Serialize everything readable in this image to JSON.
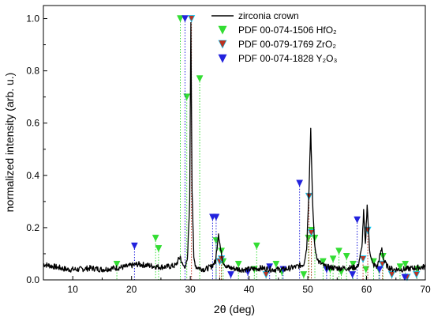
{
  "chart_data": {
    "type": "line",
    "xlabel": "2θ (deg)",
    "ylabel": "normalized intensity (arb. u.)",
    "xlim": [
      5,
      70
    ],
    "ylim": [
      0,
      1.05
    ],
    "x_ticks": [
      10,
      20,
      30,
      40,
      50,
      60,
      70
    ],
    "y_ticks": [
      0.0,
      0.2,
      0.4,
      0.6,
      0.8,
      1.0
    ],
    "y_tick_labels": [
      "0.0",
      "0.2",
      "0.4",
      "0.6",
      "0.8",
      "1.0"
    ],
    "grid": false,
    "legend_position": "top-right",
    "series": [
      {
        "name": "zirconia crown",
        "kind": "line",
        "color": "#000000",
        "x": [
          5,
          7,
          9,
          11,
          13,
          15,
          17,
          19,
          21,
          23,
          24.5,
          26,
          27.5,
          28.3,
          28.6,
          29.0,
          29.5,
          29.9,
          30.1,
          30.3,
          30.6,
          31.0,
          31.6,
          32.5,
          33.5,
          34.3,
          34.8,
          35.2,
          35.6,
          36.2,
          37,
          38.5,
          40,
          42,
          44,
          46,
          48,
          49.3,
          49.8,
          50.2,
          50.5,
          50.8,
          51.2,
          51.8,
          53,
          55,
          57,
          58.5,
          59.2,
          59.5,
          59.8,
          60.1,
          60.5,
          61.0,
          61.8,
          62.6,
          63,
          63.6,
          64.5,
          66,
          68,
          70
        ],
        "y": [
          0.06,
          0.05,
          0.04,
          0.04,
          0.045,
          0.04,
          0.045,
          0.05,
          0.06,
          0.055,
          0.05,
          0.05,
          0.055,
          0.09,
          0.06,
          0.05,
          0.07,
          0.3,
          0.99,
          0.35,
          0.08,
          0.05,
          0.045,
          0.04,
          0.05,
          0.07,
          0.18,
          0.11,
          0.07,
          0.05,
          0.045,
          0.04,
          0.04,
          0.045,
          0.04,
          0.04,
          0.05,
          0.06,
          0.12,
          0.35,
          0.58,
          0.3,
          0.12,
          0.07,
          0.05,
          0.045,
          0.045,
          0.05,
          0.12,
          0.26,
          0.13,
          0.29,
          0.12,
          0.06,
          0.05,
          0.12,
          0.07,
          0.05,
          0.04,
          0.04,
          0.045,
          0.05
        ]
      },
      {
        "name": "PDF 00-074-1506 HfO₂",
        "kind": "markers",
        "color": "#33dd33",
        "marker": "triangle-down",
        "x": [
          17.5,
          24.1,
          24.6,
          28.3,
          29.4,
          31.6,
          34.4,
          35.3,
          35.6,
          38.2,
          40.9,
          41.3,
          44.6,
          45.6,
          49.3,
          50.1,
          50.6,
          51.2,
          52.6,
          53.8,
          54.3,
          55.3,
          55.7,
          56.6,
          57.7,
          59.9,
          61.2,
          62.1,
          62.8,
          64.3,
          65.7,
          66.6,
          68.6
        ],
        "y": [
          0.06,
          0.16,
          0.12,
          1.0,
          0.7,
          0.77,
          0.15,
          0.11,
          0.07,
          0.06,
          0.04,
          0.13,
          0.06,
          0.03,
          0.02,
          0.16,
          0.19,
          0.16,
          0.07,
          0.04,
          0.08,
          0.11,
          0.03,
          0.09,
          0.06,
          0.04,
          0.07,
          0.04,
          0.09,
          0.02,
          0.05,
          0.06,
          0.04
        ]
      },
      {
        "name": "PDF 00-079-1769 ZrO₂",
        "kind": "markers",
        "color": "#bb3322",
        "marker": "triangle-down",
        "x": [
          30.2,
          35.0,
          35.3,
          42.9,
          50.2,
          50.6,
          59.4,
          60.2,
          62.7,
          64.3,
          66.9,
          68.5
        ],
        "y": [
          1.0,
          0.07,
          0.08,
          0.02,
          0.32,
          0.18,
          0.08,
          0.19,
          0.06,
          0.02,
          0.01,
          0.02
        ],
        "border": "#00d0ff"
      },
      {
        "name": "PDF 00-074-1828 Y₂O₃",
        "kind": "markers",
        "color": "#2222dd",
        "marker": "triangle-down",
        "x": [
          20.5,
          29.1,
          33.8,
          34.4,
          36.9,
          39.8,
          43.5,
          45.8,
          48.6,
          53.2,
          57.6,
          58.4,
          62.2,
          66.5
        ],
        "y": [
          0.13,
          1.0,
          0.24,
          0.24,
          0.02,
          0.03,
          0.05,
          0.04,
          0.37,
          0.04,
          0.02,
          0.23,
          0.04,
          0.01
        ]
      }
    ]
  }
}
